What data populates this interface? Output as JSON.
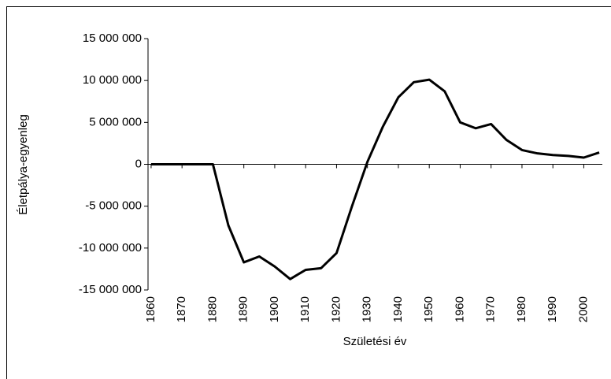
{
  "chart_data": {
    "type": "line",
    "x_label": "Születési év",
    "y_label": "Életpálya-egyenleg",
    "x": [
      1860,
      1865,
      1870,
      1875,
      1880,
      1885,
      1890,
      1895,
      1900,
      1905,
      1910,
      1915,
      1920,
      1925,
      1930,
      1935,
      1940,
      1945,
      1950,
      1955,
      1960,
      1965,
      1970,
      1975,
      1980,
      1985,
      1990,
      1995,
      2000,
      2005
    ],
    "values": [
      0,
      0,
      0,
      0,
      0,
      -7300000,
      -11700000,
      -11000000,
      -12200000,
      -13700000,
      -12600000,
      -12400000,
      -10600000,
      -5000000,
      300000,
      4500000,
      8000000,
      9800000,
      10100000,
      8700000,
      5000000,
      4300000,
      4800000,
      2900000,
      1700000,
      1300000,
      1100000,
      1000000,
      800000,
      1400000
    ],
    "color": "#000000",
    "xlim": [
      1859,
      2006
    ],
    "xticks": [
      1860,
      1870,
      1880,
      1890,
      1900,
      1910,
      1920,
      1930,
      1940,
      1950,
      1960,
      1970,
      1980,
      1990,
      2000
    ],
    "ylim": [
      -15000000,
      15000000
    ],
    "yticks": [
      {
        "value": -15000000,
        "label": "-15 000 000"
      },
      {
        "value": -10000000,
        "label": "-10 000 000"
      },
      {
        "value": -5000000,
        "label": "-5 000 000"
      },
      0,
      {
        "value": 5000000,
        "label": "5 000 000"
      },
      {
        "value": 10000000,
        "label": "10 000 000"
      },
      {
        "value": 15000000,
        "label": "15 000 000"
      }
    ]
  }
}
